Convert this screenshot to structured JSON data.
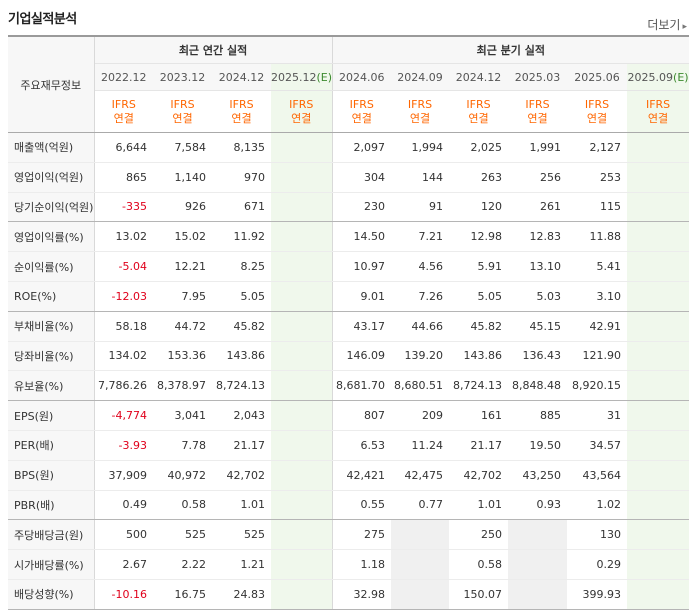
{
  "title": "기업실적분석",
  "more_label": "더보기",
  "colors": {
    "negative": "#e0001b",
    "ifrs": "#ff6600",
    "estimate_bg": "#f0f8ec",
    "estimate_mark": "#3c8a2e"
  },
  "table": {
    "header_label": "주요재무정보",
    "annual_group": "최근 연간 실적",
    "quarter_group": "최근 분기 실적",
    "periods": [
      {
        "label": "2022.12",
        "est": false
      },
      {
        "label": "2023.12",
        "est": false
      },
      {
        "label": "2024.12",
        "est": false
      },
      {
        "label": "2025.12",
        "est": true,
        "est_mark": "(E)"
      },
      {
        "label": "2024.06",
        "est": false
      },
      {
        "label": "2024.09",
        "est": false
      },
      {
        "label": "2024.12",
        "est": false
      },
      {
        "label": "2025.03",
        "est": false
      },
      {
        "label": "2025.06",
        "est": false
      },
      {
        "label": "2025.09",
        "est": true,
        "est_mark": "(E)"
      }
    ],
    "ifrs_line1": "IFRS",
    "ifrs_line2": "연결",
    "rows": [
      {
        "name": "매출액(억원)",
        "values": [
          "6,644",
          "7,584",
          "8,135",
          "",
          "2,097",
          "1,994",
          "2,025",
          "1,991",
          "2,127",
          ""
        ],
        "group_end": false
      },
      {
        "name": "영업이익(억원)",
        "values": [
          "865",
          "1,140",
          "970",
          "",
          "304",
          "144",
          "263",
          "256",
          "253",
          ""
        ],
        "group_end": false
      },
      {
        "name": "당기순이익(억원)",
        "values": [
          "-335",
          "926",
          "671",
          "",
          "230",
          "91",
          "120",
          "261",
          "115",
          ""
        ],
        "group_end": true
      },
      {
        "name": "영업이익률(%)",
        "values": [
          "13.02",
          "15.02",
          "11.92",
          "",
          "14.50",
          "7.21",
          "12.98",
          "12.83",
          "11.88",
          ""
        ],
        "group_end": false
      },
      {
        "name": "순이익률(%)",
        "values": [
          "-5.04",
          "12.21",
          "8.25",
          "",
          "10.97",
          "4.56",
          "5.91",
          "13.10",
          "5.41",
          ""
        ],
        "group_end": false
      },
      {
        "name": "ROE(%)",
        "values": [
          "-12.03",
          "7.95",
          "5.05",
          "",
          "9.01",
          "7.26",
          "5.05",
          "5.03",
          "3.10",
          ""
        ],
        "group_end": true
      },
      {
        "name": "부채비율(%)",
        "values": [
          "58.18",
          "44.72",
          "45.82",
          "",
          "43.17",
          "44.66",
          "45.82",
          "45.15",
          "42.91",
          ""
        ],
        "group_end": false
      },
      {
        "name": "당좌비율(%)",
        "values": [
          "134.02",
          "153.36",
          "143.86",
          "",
          "146.09",
          "139.20",
          "143.86",
          "136.43",
          "121.90",
          ""
        ],
        "group_end": false
      },
      {
        "name": "유보율(%)",
        "values": [
          "7,786.26",
          "8,378.97",
          "8,724.13",
          "",
          "8,681.70",
          "8,680.51",
          "8,724.13",
          "8,848.48",
          "8,920.15",
          ""
        ],
        "group_end": true
      },
      {
        "name": "EPS(원)",
        "values": [
          "-4,774",
          "3,041",
          "2,043",
          "",
          "807",
          "209",
          "161",
          "885",
          "31",
          ""
        ],
        "group_end": false
      },
      {
        "name": "PER(배)",
        "values": [
          "-3.93",
          "7.78",
          "21.17",
          "",
          "6.53",
          "11.24",
          "21.17",
          "19.50",
          "34.57",
          ""
        ],
        "group_end": false
      },
      {
        "name": "BPS(원)",
        "values": [
          "37,909",
          "40,972",
          "42,702",
          "",
          "42,421",
          "42,475",
          "42,702",
          "43,250",
          "43,564",
          ""
        ],
        "group_end": false
      },
      {
        "name": "PBR(배)",
        "values": [
          "0.49",
          "0.58",
          "1.01",
          "",
          "0.55",
          "0.77",
          "1.01",
          "0.93",
          "1.02",
          ""
        ],
        "group_end": true
      },
      {
        "name": "주당배당금(원)",
        "values": [
          "500",
          "525",
          "525",
          "",
          "275",
          "",
          "250",
          "",
          "130",
          ""
        ],
        "group_end": false
      },
      {
        "name": "시가배당률(%)",
        "values": [
          "2.67",
          "2.22",
          "1.21",
          "",
          "1.18",
          "",
          "0.58",
          "",
          "0.29",
          ""
        ],
        "group_end": false
      },
      {
        "name": "배당성향(%)",
        "values": [
          "-10.16",
          "16.75",
          "24.83",
          "",
          "32.98",
          "",
          "150.07",
          "",
          "399.93",
          ""
        ],
        "group_end": true
      }
    ]
  }
}
